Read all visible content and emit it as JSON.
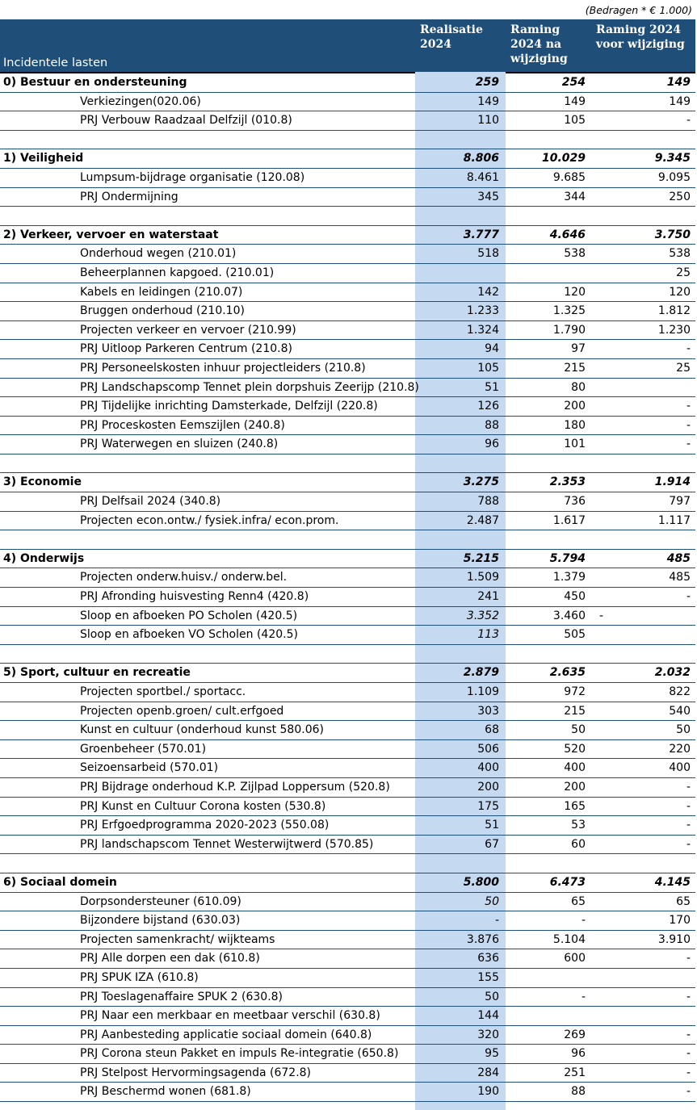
{
  "note": "(Bedragen * € 1.000)",
  "header": {
    "label": "Incidentele lasten",
    "col1": "Realisatie\n2024",
    "col2": "Raming\n2024 na\nwijziging",
    "col3": "Raming 2024\nvoor wijziging"
  },
  "rows": [
    {
      "type": "sec",
      "name": "0) Bestuur en ondersteuning",
      "v1": "259",
      "v2": "254",
      "v3": "149"
    },
    {
      "type": "item",
      "name": "Verkiezingen(020.06)",
      "v1": "149",
      "v2": "149",
      "v3": "149"
    },
    {
      "type": "item",
      "name": "PRJ Verbouw Raadzaal Delfzijl (010.8)",
      "v1": "110",
      "v2": "105",
      "v3": "-"
    },
    {
      "type": "blank"
    },
    {
      "type": "sec",
      "name": "1) Veiligheid",
      "v1": "8.806",
      "v2": "10.029",
      "v3": "9.345"
    },
    {
      "type": "item",
      "name": "Lumpsum-bijdrage organisatie (120.08)",
      "v1": "8.461",
      "v2": "9.685",
      "v3": "9.095"
    },
    {
      "type": "item",
      "name": "PRJ Ondermijning",
      "v1": "345",
      "v2": "344",
      "v3": "250"
    },
    {
      "type": "blank"
    },
    {
      "type": "sec",
      "name": "2) Verkeer, vervoer en waterstaat",
      "v1": "3.777",
      "v2": "4.646",
      "v3": "3.750"
    },
    {
      "type": "item",
      "name": "Onderhoud wegen (210.01)",
      "v1": "518",
      "v2": "538",
      "v3": "538"
    },
    {
      "type": "item",
      "name": "Beheerplannen kapgoed. (210.01)",
      "v1": "",
      "v2": "",
      "v3": "25"
    },
    {
      "type": "item",
      "name": "Kabels en leidingen (210.07)",
      "v1": "142",
      "v2": "120",
      "v3": "120"
    },
    {
      "type": "item",
      "name": "Bruggen onderhoud (210.10)",
      "v1": "1.233",
      "v2": "1.325",
      "v3": "1.812"
    },
    {
      "type": "item",
      "name": "Projecten verkeer en vervoer (210.99)",
      "v1": "1.324",
      "v2": "1.790",
      "v3": "1.230"
    },
    {
      "type": "item",
      "name": "PRJ Uitloop Parkeren Centrum (210.8)",
      "v1": "94",
      "v2": "97",
      "v3": "-"
    },
    {
      "type": "item",
      "name": "PRJ Personeelskosten inhuur projectleiders (210.8)",
      "v1": "105",
      "v2": "215",
      "v3": "25"
    },
    {
      "type": "item",
      "name": "PRJ Landschapscomp Tennet plein dorpshuis Zeerijp (210.8)",
      "v1": "51",
      "v2": "80",
      "v3": ""
    },
    {
      "type": "item",
      "name": "PRJ Tijdelijke inrichting Damsterkade, Delfzijl (220.8)",
      "v1": "126",
      "v2": "200",
      "v3": "-"
    },
    {
      "type": "item",
      "name": "PRJ Proceskosten Eemszijlen (240.8)",
      "v1": "88",
      "v2": "180",
      "v3": "-"
    },
    {
      "type": "item",
      "name": "PRJ Waterwegen en sluizen (240.8)",
      "v1": "96",
      "v2": "101",
      "v3": "-"
    },
    {
      "type": "blank"
    },
    {
      "type": "sec",
      "name": "3) Economie",
      "v1": "3.275",
      "v2": "2.353",
      "v3": "1.914"
    },
    {
      "type": "item",
      "name": "PRJ Delfsail 2024 (340.8)",
      "v1": "788",
      "v2": "736",
      "v3": "797"
    },
    {
      "type": "item",
      "name": "Projecten econ.ontw./ fysiek.infra/ econ.prom.",
      "v1": "2.487",
      "v2": "1.617",
      "v3": "1.117"
    },
    {
      "type": "blank"
    },
    {
      "type": "sec",
      "name": "4) Onderwijs",
      "v1": "5.215",
      "v2": "5.794",
      "v3": "485"
    },
    {
      "type": "item",
      "name": "Projecten onderw.huisv./ onderw.bel.",
      "v1": "1.509",
      "v2": "1.379",
      "v3": "485"
    },
    {
      "type": "item",
      "name": "PRJ Afronding huisvesting Renn4 (420.8)",
      "v1": "241",
      "v2": "450",
      "v3": "-"
    },
    {
      "type": "item",
      "name": "Sloop en afboeken PO Scholen (420.5)",
      "v1": "3.352",
      "v1i": true,
      "v2": "3.460",
      "v3": "",
      "vx": "-"
    },
    {
      "type": "item",
      "name": "Sloop en afboeken VO Scholen (420.5)",
      "v1": "113",
      "v1i": true,
      "v2": "505",
      "v3": ""
    },
    {
      "type": "blank"
    },
    {
      "type": "sec",
      "name": "5) Sport, cultuur en recreatie",
      "v1": "2.879",
      "v2": "2.635",
      "v3": "2.032"
    },
    {
      "type": "item",
      "name": "Projecten sportbel./ sportacc.",
      "v1": "1.109",
      "v2": "972",
      "v3": "822"
    },
    {
      "type": "item",
      "name": "Projecten openb.groen/ cult.erfgoed",
      "v1": "303",
      "v2": "215",
      "v3": "540"
    },
    {
      "type": "item",
      "name": "Kunst en cultuur (onderhoud kunst 580.06)",
      "v1": "68",
      "v2": "50",
      "v3": "50"
    },
    {
      "type": "item",
      "name": "Groenbeheer (570.01)",
      "v1": "506",
      "v2": "520",
      "v3": "220"
    },
    {
      "type": "item",
      "name": "Seizoensarbeid (570.01)",
      "v1": "400",
      "v2": "400",
      "v3": "400"
    },
    {
      "type": "item",
      "name": "PRJ Bijdrage onderhoud K.P. Zijlpad Loppersum (520.8)",
      "v1": "200",
      "v2": "200",
      "v3": "-"
    },
    {
      "type": "item",
      "name": "PRJ Kunst en Cultuur Corona kosten (530.8)",
      "v1": "175",
      "v2": "165",
      "v3": "-"
    },
    {
      "type": "item",
      "name": "PRJ Erfgoedprogramma 2020-2023 (550.08)",
      "v1": "51",
      "v2": "53",
      "v3": "-"
    },
    {
      "type": "item",
      "name": "PRJ landschapscom Tennet Westerwijtwerd (570.85)",
      "v1": "67",
      "v2": "60",
      "v3": "-"
    },
    {
      "type": "blank"
    },
    {
      "type": "sec",
      "name": "6) Sociaal domein",
      "v1": "5.800",
      "v2": "6.473",
      "v3": "4.145"
    },
    {
      "type": "item",
      "name": "Dorpsondersteuner (610.09)",
      "v1": "50",
      "v1i": true,
      "v2": "65",
      "v3": "65"
    },
    {
      "type": "item",
      "name": "Bijzondere bijstand (630.03)",
      "v1": "-",
      "v2": "-",
      "v3": "170"
    },
    {
      "type": "item",
      "name": "Projecten samenkracht/ wijkteams",
      "v1": "3.876",
      "v2": "5.104",
      "v3": "3.910"
    },
    {
      "type": "item",
      "name": "PRJ Alle dorpen een dak (610.8)",
      "v1": "636",
      "v2": "600",
      "v3": "-"
    },
    {
      "type": "item",
      "name": "PRJ SPUK IZA (610.8)",
      "v1": "155",
      "v2": "",
      "v3": ""
    },
    {
      "type": "item",
      "name": "PRJ Toeslagenaffaire SPUK 2 (630.8)",
      "v1": "50",
      "v2": "-",
      "v3": "-"
    },
    {
      "type": "item",
      "name": "PRJ Naar een merkbaar en meetbaar verschil (630.8)",
      "v1": "144",
      "v2": "",
      "v3": ""
    },
    {
      "type": "item",
      "name": "PRJ Aanbesteding applicatie sociaal domein (640.8)",
      "v1": "320",
      "v2": "269",
      "v3": "-"
    },
    {
      "type": "item",
      "name": "PRJ Corona steun Pakket en impuls Re-integratie (650.8)",
      "v1": "95",
      "v2": "96",
      "v3": "-"
    },
    {
      "type": "item",
      "name": "PRJ Stelpost Hervormingsagenda (672.8)",
      "v1": "284",
      "v2": "251",
      "v3": "-"
    },
    {
      "type": "item",
      "name": "PRJ Beschermd wonen (681.8)",
      "v1": "190",
      "v2": "88",
      "v3": "-"
    }
  ]
}
